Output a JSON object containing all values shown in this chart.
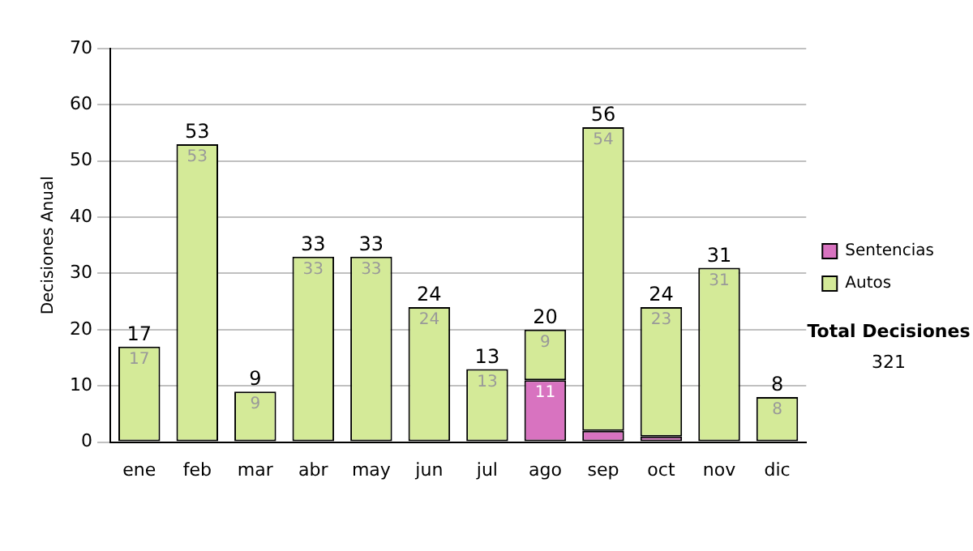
{
  "chart_data": {
    "type": "bar",
    "ylabel": "Decisiones Anual",
    "categories": [
      "ene",
      "feb",
      "mar",
      "abr",
      "may",
      "jun",
      "jul",
      "ago",
      "sep",
      "oct",
      "nov",
      "dic"
    ],
    "series": [
      {
        "name": "Sentencias",
        "color": "#d873c0",
        "values": [
          0,
          0,
          0,
          0,
          0,
          0,
          0,
          11,
          2,
          1,
          0,
          0
        ],
        "value_labels": [
          null,
          null,
          null,
          null,
          null,
          null,
          null,
          "11",
          null,
          null,
          null,
          null
        ]
      },
      {
        "name": "Autos",
        "color": "#d4ea98",
        "values": [
          17,
          53,
          9,
          33,
          33,
          24,
          13,
          9,
          54,
          23,
          31,
          8
        ],
        "value_labels": [
          "17",
          "53",
          "9",
          "33",
          "33",
          "24",
          "13",
          "9",
          "54",
          "23",
          "31",
          "8"
        ]
      }
    ],
    "stacked": true,
    "totals": [
      "17",
      "53",
      "9",
      "33",
      "33",
      "24",
      "13",
      "20",
      "56",
      "24",
      "31",
      "8"
    ],
    "ylim": [
      0,
      70
    ],
    "yticks": [
      0,
      10,
      20,
      30,
      40,
      50,
      60,
      70
    ],
    "grid": "y",
    "legend": "right",
    "annotations": [
      "Total Decisiones",
      "321"
    ]
  }
}
